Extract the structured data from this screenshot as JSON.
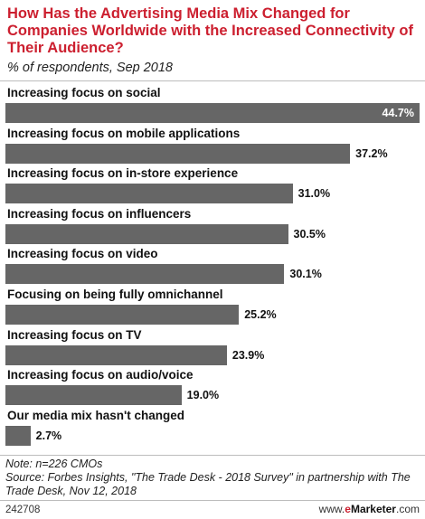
{
  "chart_data": {
    "type": "bar",
    "orientation": "horizontal",
    "title": "How Has the Advertising Media Mix Changed for Companies Worldwide with the Increased Connectivity of Their Audience?",
    "subtitle": "% of respondents, Sep 2018",
    "categories": [
      "Increasing focus on social",
      "Increasing focus on mobile applications",
      "Increasing focus on in-store experience",
      "Increasing focus on influencers",
      "Increasing focus on video",
      "Focusing on being fully omnichannel",
      "Increasing focus on TV",
      "Increasing focus on audio/voice",
      "Our media mix hasn't changed"
    ],
    "values": [
      44.7,
      37.2,
      31.0,
      30.5,
      30.1,
      25.2,
      23.9,
      19.0,
      2.7
    ],
    "value_labels": [
      "44.7%",
      "37.2%",
      "31.0%",
      "30.5%",
      "30.1%",
      "25.2%",
      "23.9%",
      "19.0%",
      "2.7%"
    ],
    "bar_color": "#666666",
    "xlim": [
      0,
      44.7
    ],
    "grid": false,
    "legend": "none"
  },
  "note": "Note: n=226 CMOs",
  "source": "Source: Forbes Insights, \"The Trade Desk - 2018 Survey\" in partnership with The Trade Desk, Nov 12, 2018",
  "chart_id": "242708",
  "brand": {
    "prefix": "www.",
    "e": "e",
    "name": "Marketer",
    "suffix": ".com",
    "accent_color": "#cc1f2f"
  }
}
